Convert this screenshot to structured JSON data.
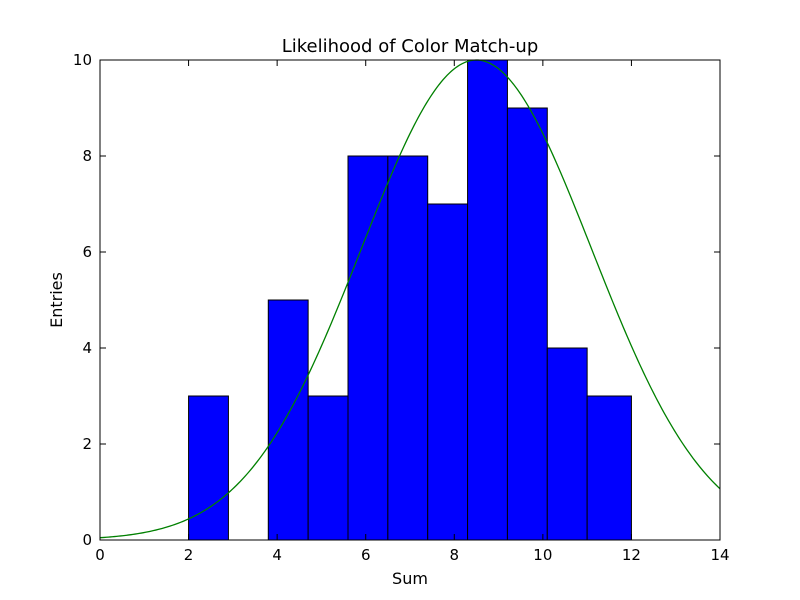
{
  "chart_data": {
    "type": "bar",
    "title": "Likelihood of Color Match-up",
    "xlabel": "Sum",
    "ylabel": "Entries",
    "xlim": [
      0,
      14
    ],
    "ylim": [
      0,
      10
    ],
    "xticks": [
      "0",
      "2",
      "4",
      "6",
      "8",
      "10",
      "12",
      "14"
    ],
    "yticks": [
      "0",
      "2",
      "4",
      "6",
      "8",
      "10"
    ],
    "grid": false,
    "legend": "none",
    "bar_color": "#0000ff",
    "bar_edge_color": "#000000",
    "series": [
      {
        "type": "histogram",
        "bins": [
          {
            "x0": 2.0,
            "x1": 2.9,
            "value": 3
          },
          {
            "x0": 2.9,
            "x1": 3.8,
            "value": 0
          },
          {
            "x0": 3.8,
            "x1": 4.7,
            "value": 5
          },
          {
            "x0": 4.7,
            "x1": 5.6,
            "value": 3
          },
          {
            "x0": 5.6,
            "x1": 6.5,
            "value": 8
          },
          {
            "x0": 6.5,
            "x1": 7.4,
            "value": 8
          },
          {
            "x0": 7.4,
            "x1": 8.3,
            "value": 7
          },
          {
            "x0": 8.3,
            "x1": 9.2,
            "value": 10
          },
          {
            "x0": 9.2,
            "x1": 10.1,
            "value": 9
          },
          {
            "x0": 10.1,
            "x1": 11.0,
            "value": 4
          },
          {
            "x0": 11.0,
            "x1": 12.0,
            "value": 3
          }
        ]
      },
      {
        "type": "line",
        "color": "#008000",
        "curve": "gaussian",
        "amplitude": 10,
        "mean": 8.5,
        "sigma": 2.6,
        "x_range": [
          0,
          14
        ]
      }
    ]
  }
}
